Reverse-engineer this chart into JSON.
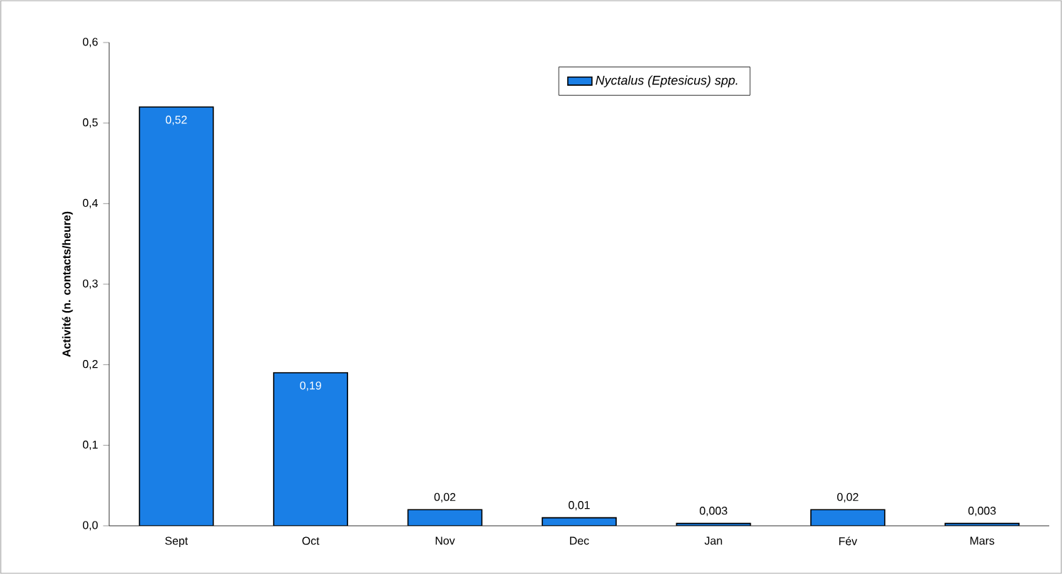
{
  "chart_data": {
    "type": "bar",
    "ylabel": "Activité (n. contacts/heure)",
    "categories": [
      "Sept",
      "Oct",
      "Nov",
      "Dec",
      "Jan",
      "Fév",
      "Mars"
    ],
    "series": [
      {
        "name": "Nyctalus (Eptesicus) spp.",
        "color": "#1a7fe6",
        "values": [
          0.52,
          0.19,
          0.02,
          0.01,
          0.003,
          0.02,
          0.003
        ],
        "value_labels": [
          "0,52",
          "0,19",
          "0,02",
          "0,01",
          "0,003",
          "0,02",
          "0,003"
        ]
      }
    ],
    "ylim": [
      0,
      0.6
    ],
    "yticks": [
      {
        "value": 0,
        "label": "0,0"
      },
      {
        "value": 0.1,
        "label": "0,1"
      },
      {
        "value": 0.2,
        "label": "0,2"
      },
      {
        "value": 0.3,
        "label": "0,3"
      },
      {
        "value": 0.4,
        "label": "0,4"
      },
      {
        "value": 0.5,
        "label": "0,5"
      },
      {
        "value": 0.6,
        "label": "0,6"
      }
    ],
    "grid": false,
    "legend": "top"
  }
}
